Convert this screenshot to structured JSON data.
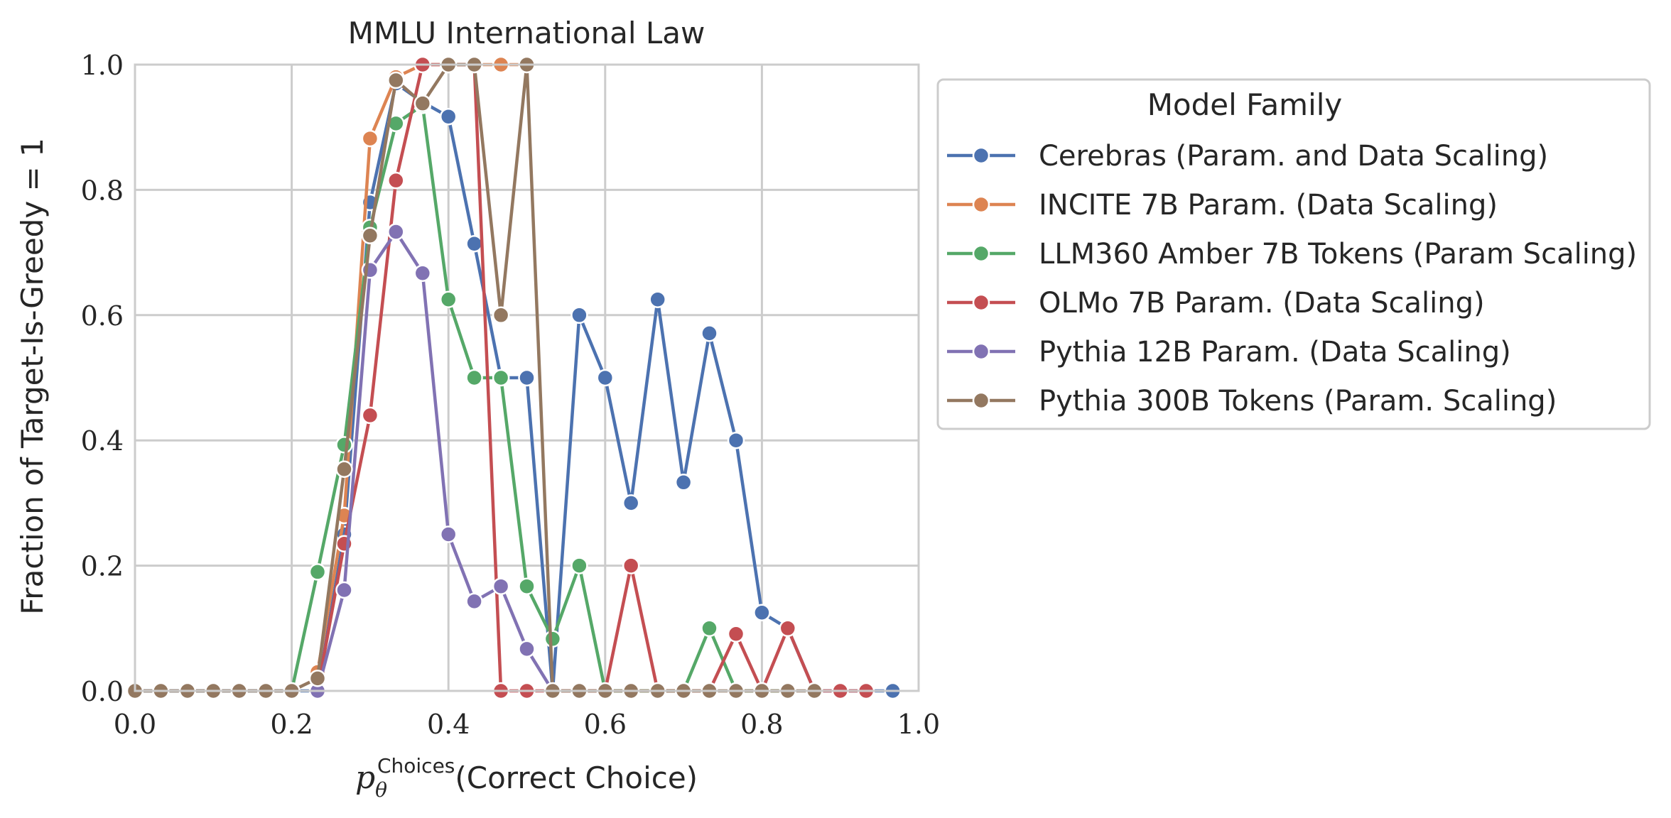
{
  "chart_data": {
    "type": "line",
    "title": "MMLU International Law",
    "ylabel": "Fraction of Target-Is-Greedy = 1",
    "xlabel": {
      "var": "p",
      "sub": "θ",
      "sup": "Choices",
      "arg": "(Correct Choice)"
    },
    "xlim": [
      0.0,
      1.0
    ],
    "ylim": [
      0.0,
      1.0
    ],
    "xticks": [
      "0.0",
      "0.2",
      "0.4",
      "0.6",
      "0.8",
      "1.0"
    ],
    "yticks": [
      "0.0",
      "0.2",
      "0.4",
      "0.6",
      "0.8",
      "1.0"
    ],
    "grid": true,
    "legend": {
      "title": "Model Family",
      "placement": "outside upper right"
    },
    "series": [
      {
        "name": "Cerebras (Param. and Data Scaling)",
        "color": "#4c72b0",
        "points": [
          [
            0.0,
            0.0
          ],
          [
            0.033,
            0.0
          ],
          [
            0.067,
            0.0
          ],
          [
            0.1,
            0.0
          ],
          [
            0.133,
            0.0
          ],
          [
            0.167,
            0.0
          ],
          [
            0.2,
            0.0
          ],
          [
            0.233,
            0.0
          ],
          [
            0.267,
            0.25
          ],
          [
            0.3,
            0.78
          ],
          [
            0.333,
            0.97
          ],
          [
            0.367,
            0.94
          ],
          [
            0.4,
            0.917
          ],
          [
            0.433,
            0.714
          ],
          [
            0.467,
            0.5
          ],
          [
            0.5,
            0.5
          ],
          [
            0.533,
            0.0
          ],
          [
            0.567,
            0.6
          ],
          [
            0.6,
            0.5
          ],
          [
            0.633,
            0.3
          ],
          [
            0.667,
            0.625
          ],
          [
            0.7,
            0.333
          ],
          [
            0.733,
            0.571
          ],
          [
            0.767,
            0.4
          ],
          [
            0.8,
            0.125
          ],
          [
            0.833,
            0.1
          ],
          [
            0.867,
            0.0
          ],
          [
            0.9,
            0.0
          ],
          [
            0.933,
            0.0
          ],
          [
            0.967,
            0.0
          ]
        ]
      },
      {
        "name": "INCITE 7B Param. (Data Scaling)",
        "color": "#dd8452",
        "points": [
          [
            0.233,
            0.03
          ],
          [
            0.267,
            0.28
          ],
          [
            0.3,
            0.882
          ],
          [
            0.333,
            0.98
          ],
          [
            0.367,
            1.0
          ],
          [
            0.4,
            1.0
          ],
          [
            0.433,
            1.0
          ],
          [
            0.467,
            1.0
          ],
          [
            0.5,
            1.0
          ]
        ]
      },
      {
        "name": "LLM360 Amber 7B Tokens (Param Scaling)",
        "color": "#55a868",
        "points": [
          [
            0.2,
            0.0
          ],
          [
            0.233,
            0.19
          ],
          [
            0.267,
            0.393
          ],
          [
            0.3,
            0.74
          ],
          [
            0.333,
            0.906
          ],
          [
            0.367,
            0.935
          ],
          [
            0.4,
            0.625
          ],
          [
            0.433,
            0.5
          ],
          [
            0.467,
            0.5
          ],
          [
            0.5,
            0.167
          ],
          [
            0.533,
            0.083
          ],
          [
            0.567,
            0.2
          ],
          [
            0.6,
            0.0
          ],
          [
            0.633,
            0.0
          ],
          [
            0.667,
            0.0
          ],
          [
            0.7,
            0.0
          ],
          [
            0.733,
            0.1
          ],
          [
            0.767,
            0.0
          ],
          [
            0.8,
            0.0
          ],
          [
            0.833,
            0.0
          ]
        ]
      },
      {
        "name": "OLMo 7B Param. (Data Scaling)",
        "color": "#c44e52",
        "points": [
          [
            0.233,
            0.0
          ],
          [
            0.267,
            0.235
          ],
          [
            0.3,
            0.44
          ],
          [
            0.333,
            0.815
          ],
          [
            0.367,
            1.0
          ],
          [
            0.4,
            1.0
          ],
          [
            0.433,
            1.0
          ],
          [
            0.467,
            0.0
          ],
          [
            0.5,
            0.0
          ],
          [
            0.533,
            0.0
          ],
          [
            0.567,
            0.0
          ],
          [
            0.6,
            0.0
          ],
          [
            0.633,
            0.2
          ],
          [
            0.667,
            0.0
          ],
          [
            0.7,
            0.0
          ],
          [
            0.733,
            0.0
          ],
          [
            0.767,
            0.091
          ],
          [
            0.8,
            0.0
          ],
          [
            0.833,
            0.1
          ],
          [
            0.867,
            0.0
          ],
          [
            0.9,
            0.0
          ],
          [
            0.933,
            0.0
          ]
        ]
      },
      {
        "name": "Pythia 12B Param. (Data Scaling)",
        "color": "#8172b3",
        "points": [
          [
            0.233,
            0.0
          ],
          [
            0.267,
            0.161
          ],
          [
            0.3,
            0.672
          ],
          [
            0.333,
            0.733
          ],
          [
            0.367,
            0.667
          ],
          [
            0.4,
            0.25
          ],
          [
            0.433,
            0.143
          ],
          [
            0.467,
            0.167
          ],
          [
            0.5,
            0.067
          ],
          [
            0.533,
            0.0
          ]
        ]
      },
      {
        "name": "Pythia 300B Tokens (Param. Scaling)",
        "color": "#937860",
        "points": [
          [
            0.0,
            0.0
          ],
          [
            0.033,
            0.0
          ],
          [
            0.067,
            0.0
          ],
          [
            0.1,
            0.0
          ],
          [
            0.133,
            0.0
          ],
          [
            0.167,
            0.0
          ],
          [
            0.2,
            0.0
          ],
          [
            0.233,
            0.02
          ],
          [
            0.267,
            0.354
          ],
          [
            0.3,
            0.727
          ],
          [
            0.333,
            0.975
          ],
          [
            0.367,
            0.938
          ],
          [
            0.4,
            1.0
          ],
          [
            0.433,
            1.0
          ],
          [
            0.467,
            0.6
          ],
          [
            0.5,
            1.0
          ],
          [
            0.533,
            0.0
          ],
          [
            0.567,
            0.0
          ],
          [
            0.6,
            0.0
          ],
          [
            0.633,
            0.0
          ],
          [
            0.667,
            0.0
          ],
          [
            0.7,
            0.0
          ],
          [
            0.733,
            0.0
          ],
          [
            0.767,
            0.0
          ],
          [
            0.8,
            0.0
          ],
          [
            0.833,
            0.0
          ],
          [
            0.867,
            0.0
          ]
        ]
      }
    ]
  }
}
